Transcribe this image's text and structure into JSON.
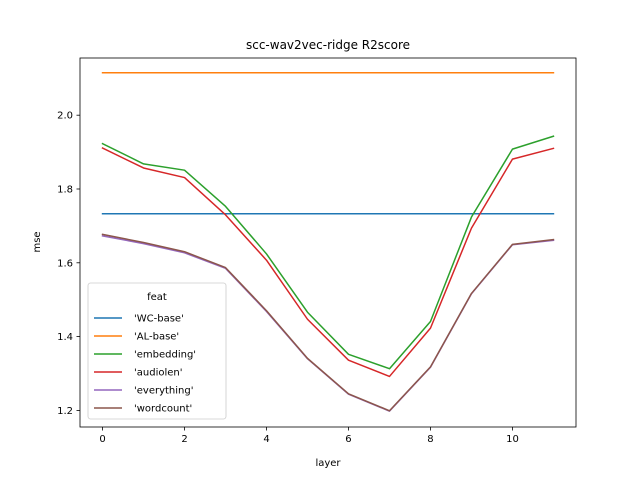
{
  "chart_data": {
    "type": "line",
    "title": "scc-wav2vec-ridge R2score",
    "xlabel": "layer",
    "ylabel": "mse",
    "x": [
      0,
      1,
      2,
      3,
      4,
      5,
      6,
      7,
      8,
      9,
      10,
      11
    ],
    "xlim": [
      -0.55,
      11.55
    ],
    "ylim": [
      1.155,
      2.155
    ],
    "xticks": [
      0,
      2,
      4,
      6,
      8,
      10
    ],
    "yticks": [
      1.2,
      1.4,
      1.6,
      1.8,
      2.0
    ],
    "grid": false,
    "legend": {
      "title": "feat",
      "placement": "lower-left"
    },
    "series": [
      {
        "name": "'WC-base'",
        "color": "#1f77b4",
        "values": [
          1.733,
          1.733,
          1.733,
          1.733,
          1.733,
          1.733,
          1.733,
          1.733,
          1.733,
          1.733,
          1.733,
          1.733
        ]
      },
      {
        "name": "'AL-base'",
        "color": "#ff7f0e",
        "values": [
          2.115,
          2.115,
          2.115,
          2.115,
          2.115,
          2.115,
          2.115,
          2.115,
          2.115,
          2.115,
          2.115,
          2.115
        ]
      },
      {
        "name": "'embedding'",
        "color": "#2ca02c",
        "values": [
          1.923,
          1.868,
          1.851,
          1.753,
          1.624,
          1.466,
          1.352,
          1.313,
          1.441,
          1.724,
          1.908,
          1.943
        ]
      },
      {
        "name": "'audiolen'",
        "color": "#d62728",
        "values": [
          1.911,
          1.857,
          1.831,
          1.73,
          1.607,
          1.447,
          1.336,
          1.292,
          1.423,
          1.694,
          1.881,
          1.91
        ]
      },
      {
        "name": "'everything'",
        "color": "#9467bd",
        "values": [
          1.673,
          1.652,
          1.627,
          1.585,
          1.468,
          1.34,
          1.244,
          1.198,
          1.317,
          1.516,
          1.649,
          1.661
        ]
      },
      {
        "name": "'wordcount'",
        "color": "#8c564b",
        "values": [
          1.677,
          1.655,
          1.63,
          1.587,
          1.47,
          1.341,
          1.245,
          1.199,
          1.318,
          1.517,
          1.65,
          1.663
        ]
      }
    ]
  }
}
